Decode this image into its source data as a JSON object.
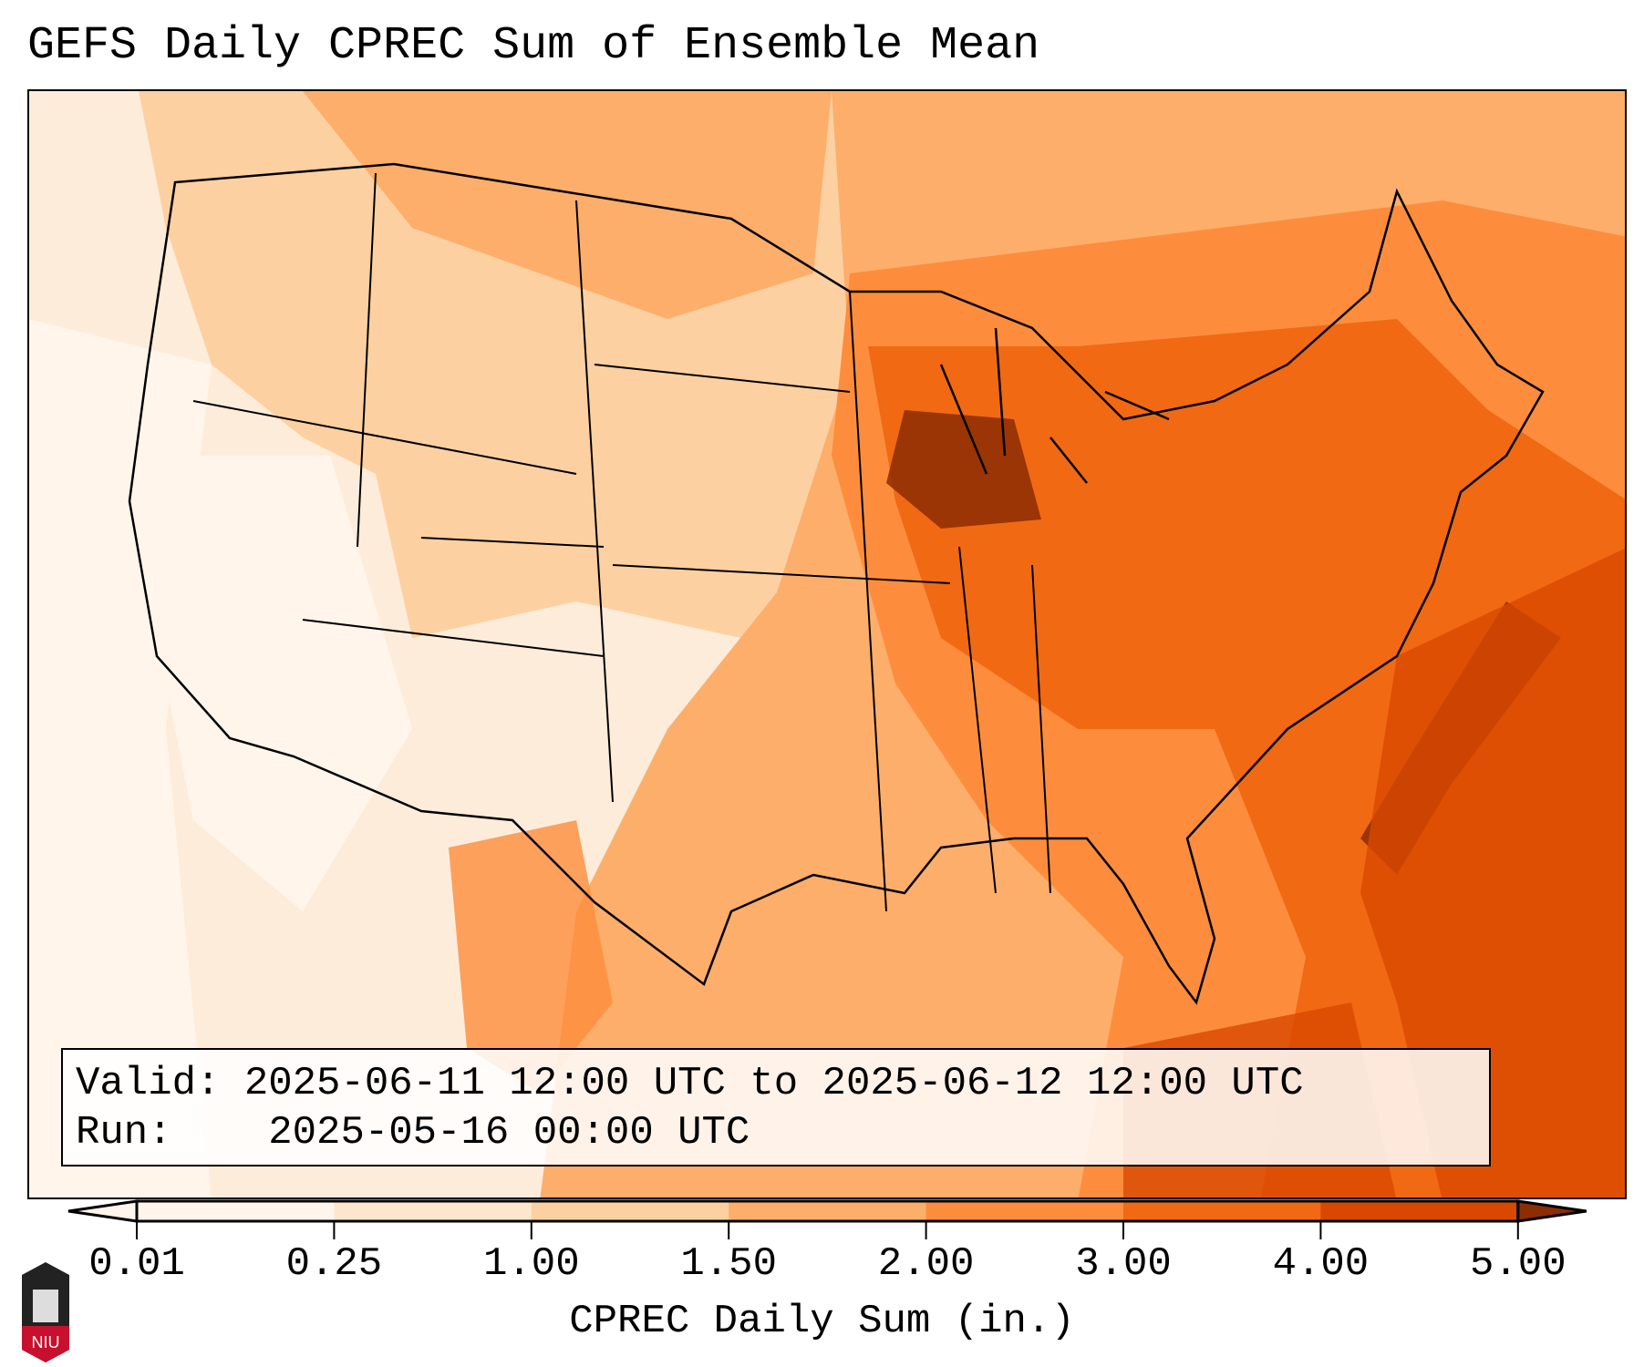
{
  "title": "GEFS Daily CPREC Sum of Ensemble Mean",
  "legend": {
    "valid_label": "Valid:",
    "valid_text": "2025-06-11 12:00 UTC to 2025-06-12 12:00 UTC",
    "run_label": "Run:",
    "run_text": "2025-05-16 00:00 UTC"
  },
  "colorbar": {
    "label": "CPREC Daily Sum (in.)",
    "ticks": [
      "0.01",
      "0.25",
      "1.00",
      "1.50",
      "2.00",
      "3.00",
      "4.00",
      "5.00"
    ],
    "colors": [
      "#fff5eb",
      "#fee6ce",
      "#fdd0a2",
      "#fdae6b",
      "#fd8d3c",
      "#f16913",
      "#d94801",
      "#8c2d04"
    ]
  },
  "logo": {
    "text": "NIU"
  }
}
